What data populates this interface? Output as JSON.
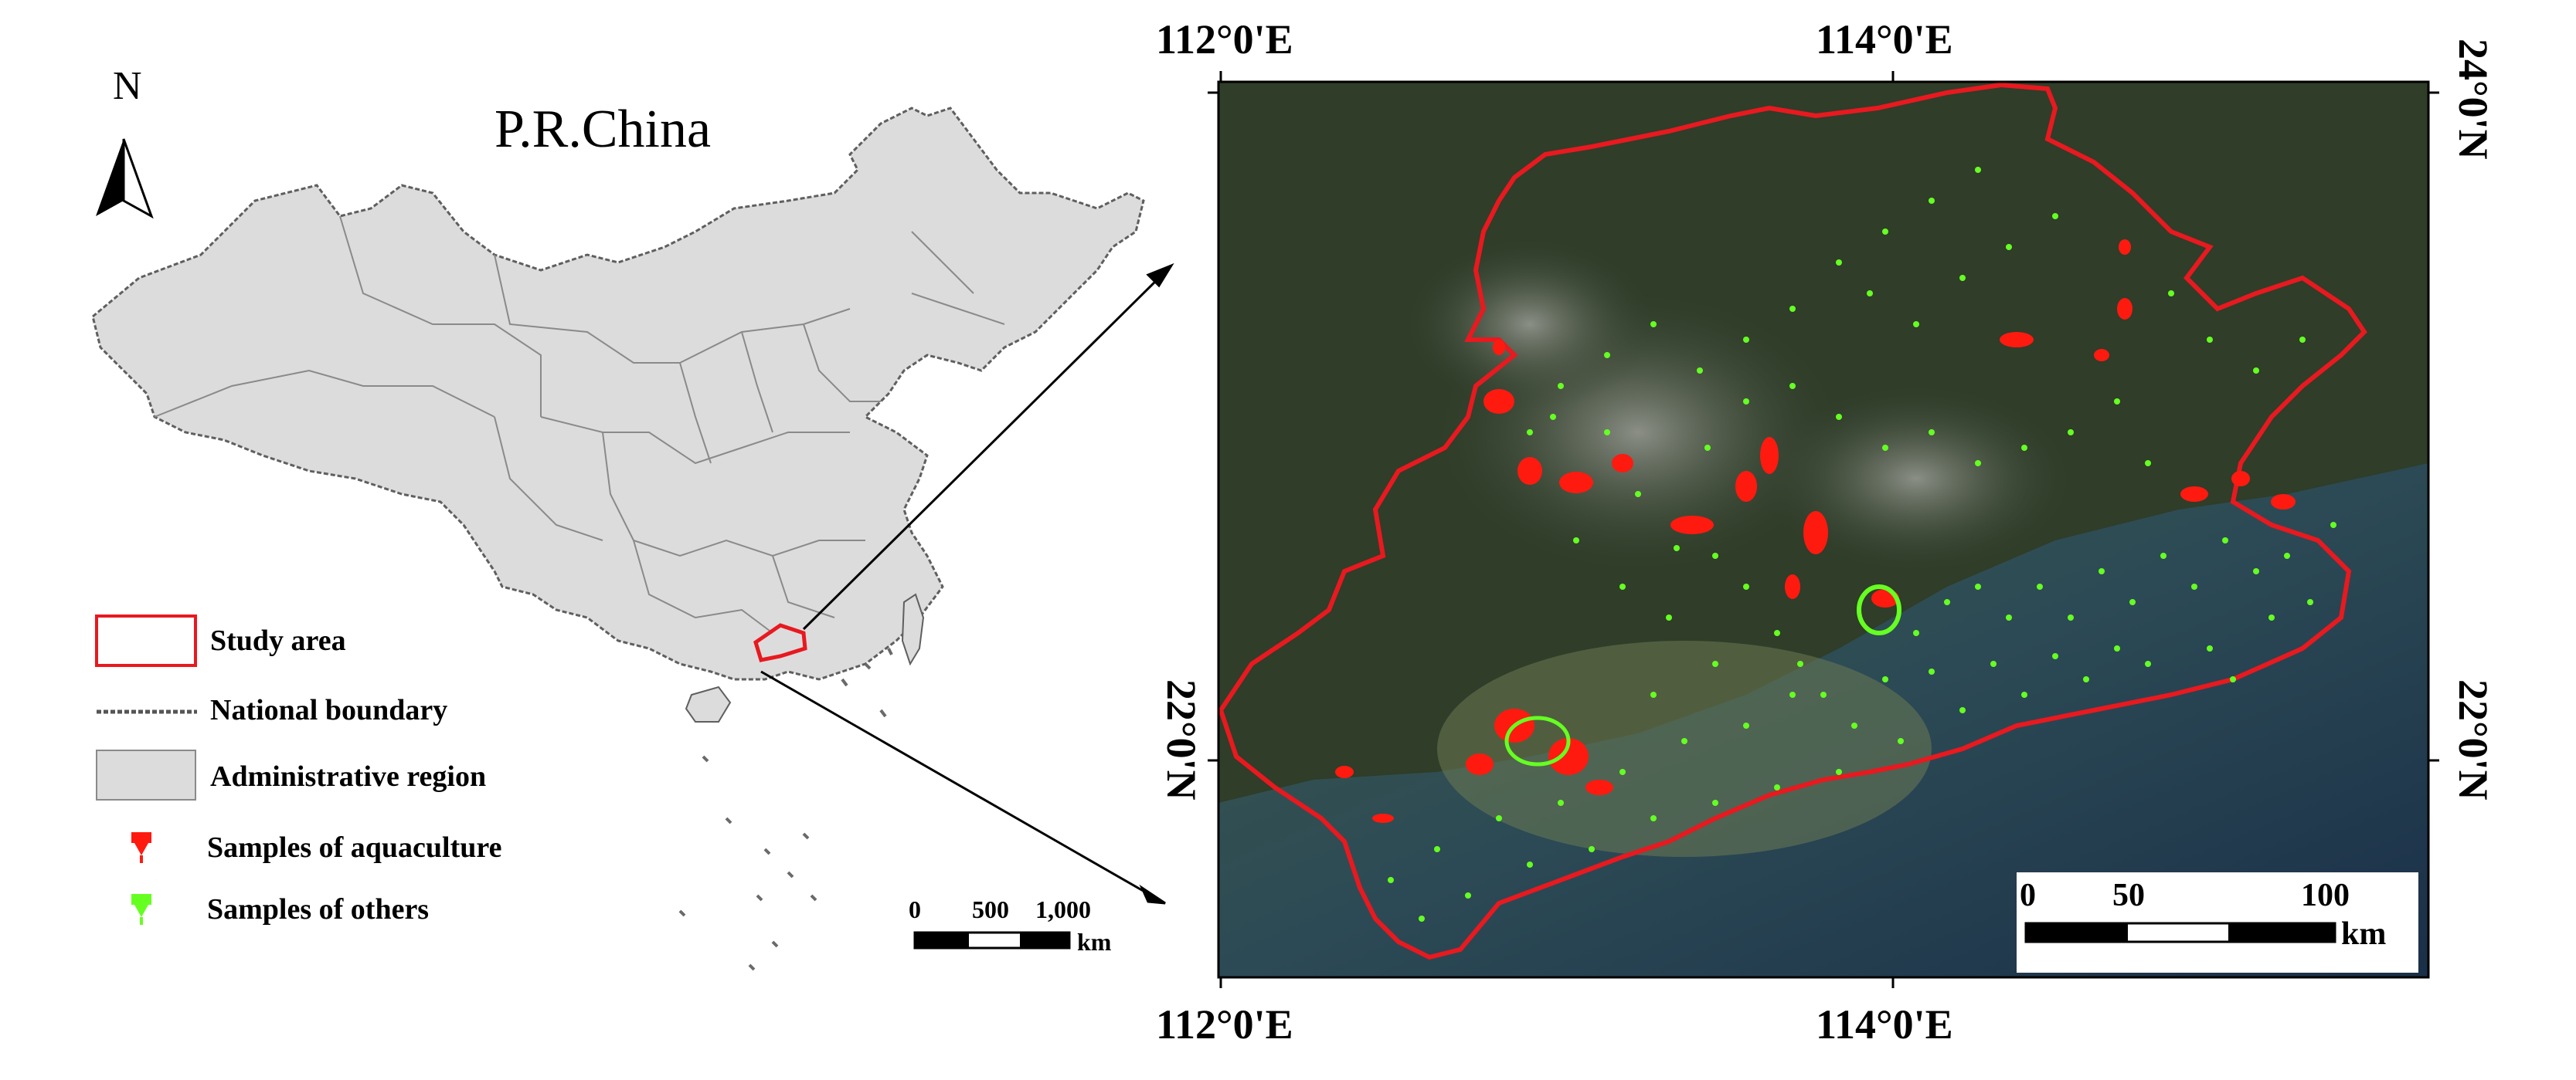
{
  "overview": {
    "title": "P.R.China",
    "north_label": "N",
    "scale_ticks": [
      "0",
      "500",
      "1,000"
    ],
    "scale_unit": "km"
  },
  "legend": {
    "items": [
      {
        "label": "Study area",
        "symbol": "red-outline-box"
      },
      {
        "label": "National boundary",
        "symbol": "dotted-line"
      },
      {
        "label": "Administrative region",
        "symbol": "grey-box"
      },
      {
        "label": "Samples of aquaculture",
        "symbol": "red-pin"
      },
      {
        "label": "Samples of others",
        "symbol": "green-pin"
      }
    ]
  },
  "study_map": {
    "top_longitudes": [
      "112°0'E",
      "114°0'E"
    ],
    "bottom_longitudes": [
      "112°0'E",
      "114°0'E"
    ],
    "right_latitudes": [
      "24°0'N",
      "22°0'N"
    ],
    "left_latitudes": [
      "22°0'N"
    ],
    "scale_ticks": [
      "0",
      "50",
      "100"
    ],
    "scale_unit": "km"
  },
  "colors": {
    "study_area": "#e8191f",
    "aquaculture": "#ff1a10",
    "others": "#66ff22",
    "admin_fill": "#dcdcdc",
    "sea": "#2a4a52",
    "land": "#2f3d29"
  }
}
